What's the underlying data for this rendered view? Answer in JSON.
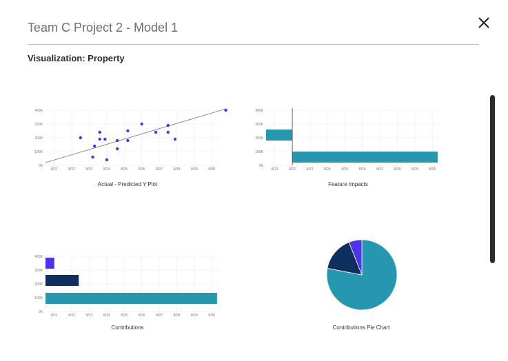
{
  "header": {
    "title": "Team C Project 2 - Model 1",
    "subtitle": "Visualization: Property"
  },
  "icons": {
    "close": "close-icon"
  },
  "colors": {
    "teal": "#2797b0",
    "navy": "#0f2f5e",
    "purple": "#4a35e8",
    "scatter": "#4a35e8",
    "grid": "#ececec",
    "axisText": "#777777"
  },
  "axes": {
    "yticks": [
      "400K",
      "300K",
      "200K",
      "100K",
      "0K"
    ],
    "xticks": [
      "8/21",
      "8/22",
      "8/23",
      "8/24",
      "8/25",
      "8/26",
      "8/27",
      "8/28",
      "8/29",
      "8/30"
    ]
  },
  "chart_data": [
    {
      "id": "scatter",
      "type": "scatter",
      "title": "Actual - Predicted Y Plot",
      "xlim": [
        0,
        10
      ],
      "ylim": [
        0,
        400
      ],
      "points": [
        [
          2,
          200
        ],
        [
          3.1,
          240
        ],
        [
          3.1,
          190
        ],
        [
          3.4,
          190
        ],
        [
          2.8,
          140
        ],
        [
          2.7,
          60
        ],
        [
          3.5,
          40
        ],
        [
          4.1,
          180
        ],
        [
          4.1,
          120
        ],
        [
          4.7,
          180
        ],
        [
          4.7,
          250
        ],
        [
          5.5,
          300
        ],
        [
          6.3,
          240
        ],
        [
          7,
          290
        ],
        [
          7,
          240
        ],
        [
          7.4,
          190
        ],
        [
          10.3,
          400
        ]
      ],
      "trendline": [
        [
          0,
          20
        ],
        [
          10.3,
          410
        ]
      ]
    },
    {
      "id": "feature-impacts",
      "type": "bar",
      "orientation": "horizontal",
      "title": "Feature Impacts",
      "xlim": [
        0,
        10
      ],
      "ylim": [
        0,
        400
      ],
      "baseline": 1.5,
      "bars": [
        {
          "center": 220,
          "height": 80,
          "from": 0,
          "to": 1.5,
          "color": "teal"
        },
        {
          "center": 60,
          "height": 80,
          "from": 1.5,
          "to": 9.8,
          "color": "teal"
        }
      ]
    },
    {
      "id": "contributions",
      "type": "bar",
      "orientation": "horizontal",
      "title": "Contributions",
      "xlim": [
        0,
        10
      ],
      "ylim": [
        0,
        400
      ],
      "bars": [
        {
          "center": 350,
          "height": 80,
          "from": 0,
          "to": 0.5,
          "color": "purple"
        },
        {
          "center": 225,
          "height": 80,
          "from": 0,
          "to": 1.9,
          "color": "navy"
        },
        {
          "center": 95,
          "height": 80,
          "from": 0,
          "to": 9.8,
          "color": "teal"
        }
      ]
    },
    {
      "id": "pie",
      "type": "pie",
      "title": "Contributions Pie Chart",
      "slices": [
        {
          "value": 78,
          "color": "teal"
        },
        {
          "value": 16,
          "color": "navy"
        },
        {
          "value": 6,
          "color": "purple"
        }
      ]
    }
  ]
}
